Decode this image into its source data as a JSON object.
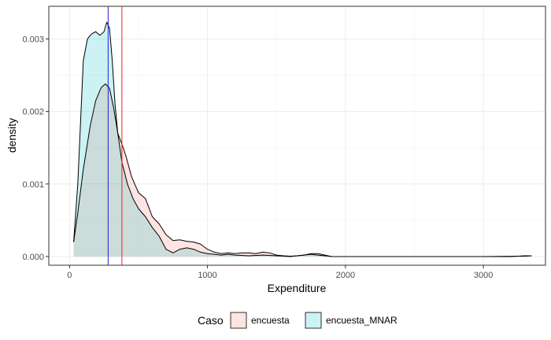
{
  "chart_data": {
    "type": "area",
    "xlabel": "Expenditure",
    "ylabel": "density",
    "xlim": [
      -150,
      3450
    ],
    "ylim": [
      -0.00012,
      0.00345
    ],
    "x_ticks": [
      0,
      1000,
      2000,
      3000
    ],
    "y_ticks": [
      0.0,
      0.001,
      0.002,
      0.003
    ],
    "x_tick_labels": [
      "0",
      "1000",
      "2000",
      "3000"
    ],
    "y_tick_labels": [
      "0.000",
      "0.001",
      "0.002",
      "0.003"
    ],
    "grid": true,
    "legend": {
      "title": "Caso",
      "position": "bottom",
      "entries": [
        "encuesta",
        "encuesta_MNAR"
      ]
    },
    "series": [
      {
        "name": "encuesta",
        "fill": "#f8766d",
        "fill_opacity": 0.2,
        "x": [
          30,
          60,
          100,
          150,
          190,
          230,
          260,
          290,
          320,
          350,
          380,
          410,
          450,
          500,
          550,
          600,
          650,
          700,
          750,
          800,
          850,
          900,
          950,
          1000,
          1050,
          1100,
          1150,
          1200,
          1250,
          1300,
          1350,
          1400,
          1450,
          1500,
          1550,
          1600,
          1650,
          1700,
          1750,
          1800,
          1850,
          1900,
          2000,
          2200,
          2500,
          2800,
          3000,
          3200,
          3300,
          3350
        ],
        "y": [
          0.0002,
          0.0006,
          0.0012,
          0.0018,
          0.00215,
          0.00233,
          0.00238,
          0.00232,
          0.00205,
          0.0017,
          0.00155,
          0.00138,
          0.0011,
          0.00088,
          0.0008,
          0.00055,
          0.00045,
          0.0003,
          0.00022,
          0.00023,
          0.00021,
          0.0002,
          0.00017,
          0.0001,
          6e-05,
          4e-05,
          5e-05,
          4e-05,
          5e-05,
          5e-05,
          4e-05,
          6e-05,
          5e-05,
          2e-05,
          1e-05,
          5e-06,
          1e-05,
          2e-05,
          4e-05,
          4e-05,
          2e-05,
          0.0,
          0.0,
          0.0,
          0.0,
          0.0,
          0.0,
          0.0,
          1e-05,
          1e-05
        ]
      },
      {
        "name": "encuesta_MNAR",
        "fill": "#00bfc4",
        "fill_opacity": 0.2,
        "x": [
          30,
          60,
          100,
          130,
          160,
          190,
          220,
          250,
          270,
          290,
          310,
          330,
          350,
          380,
          420,
          460,
          500,
          550,
          600,
          650,
          700,
          750,
          800,
          850,
          900,
          950,
          1000,
          1050,
          1100,
          1150,
          1200,
          1300,
          1400,
          1500,
          1600,
          1700,
          1750,
          1800,
          1850,
          1900,
          2000,
          2500,
          3000,
          3300,
          3350
        ],
        "y": [
          0.0002,
          0.001,
          0.0027,
          0.003,
          0.00307,
          0.0031,
          0.00305,
          0.0031,
          0.00323,
          0.00315,
          0.0027,
          0.0021,
          0.0017,
          0.0013,
          0.001,
          0.0008,
          0.00066,
          0.00055,
          0.0004,
          0.00028,
          0.0001,
          5e-05,
          0.0001,
          0.00012,
          0.0001,
          6e-05,
          4e-05,
          3e-05,
          2e-05,
          3e-05,
          2e-05,
          1e-05,
          2e-05,
          1e-05,
          0.0,
          2e-05,
          3e-05,
          2e-05,
          1e-05,
          0.0,
          0.0,
          0.0,
          0.0,
          5e-06,
          1e-05
        ]
      }
    ],
    "vlines": [
      {
        "series": "encuesta",
        "x": 380,
        "color": "#e8281c"
      },
      {
        "series": "encuesta_MNAR",
        "x": 280,
        "color": "#1f1fd6"
      }
    ]
  }
}
